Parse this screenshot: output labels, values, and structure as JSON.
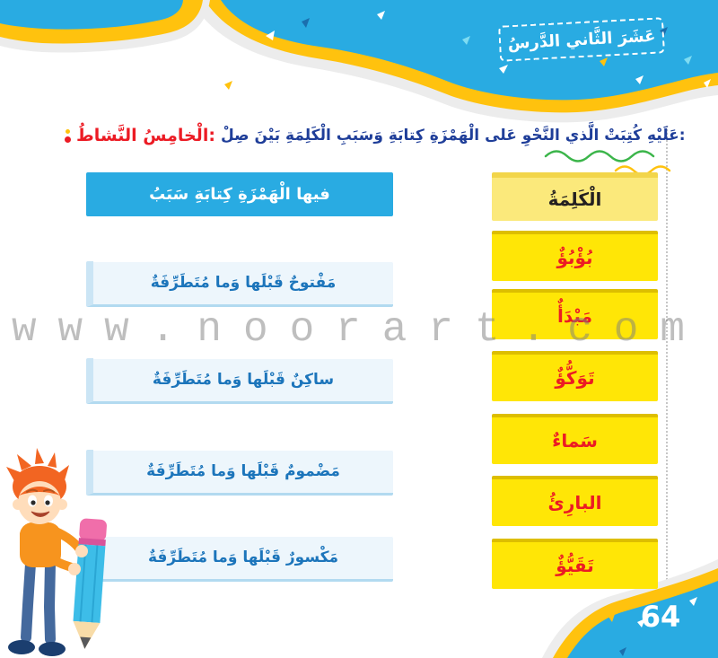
{
  "header": {
    "lesson_title": "الدَّرسُ الثَّاني عَشَرَ"
  },
  "activity": {
    "label": "النَّشاطُ الْخامِسُ:",
    "instructions": "صِلْ بَيْنَ الْكَلِمَةِ وَسَبَبِ كِتابَةِ الْهَمْزَةِ عَلى النَّحْوِ الَّذي كُتِبَتْ عَلَيْهِ:"
  },
  "matching": {
    "words_header": "الْكَلِمَةُ",
    "reasons_header": "سَبَبُ كِتابَةِ الْهَمْزَةِ فيها",
    "words": [
      "بُؤْبُؤٌ",
      "مَبْدَأٌ",
      "تَوَكُّؤٌ",
      "سَماءٌ",
      "البارِئُ",
      "تَقَيُّؤٌ"
    ],
    "reasons": [
      "مُتَطَرِّفَةٌ وَما قَبْلَها مَفْتوحٌ",
      "مُتَطَرِّفَةٌ وَما قَبْلَها ساكِنٌ",
      "مُتَطَرِّفَةٌ وَما قَبْلَها مَضْمومٌ",
      "مُتَطَرِّفَةٌ وَما قَبْلَها مَكْسورٌ"
    ]
  },
  "watermark": "www.noorart.com",
  "page_number": "64",
  "colors": {
    "sky-blue": "#29ABE2",
    "band-yellow": "#FFC20E",
    "box-yellow": "#FFE606",
    "accent-red": "#EC1B24",
    "reason-blue": "#1C75BB",
    "instruction-blue": "#1F3E99",
    "squiggle-green": "#3BB54A"
  }
}
